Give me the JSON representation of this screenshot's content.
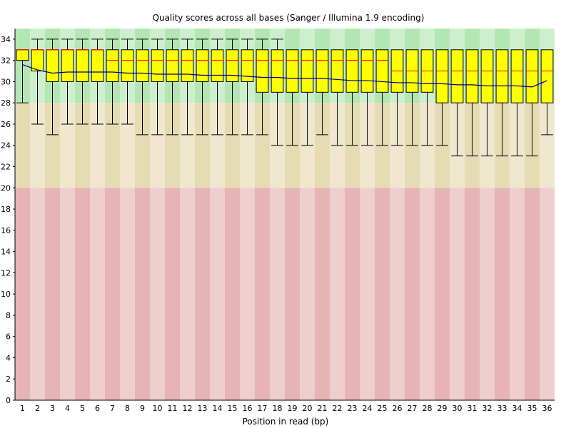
{
  "chart_data": {
    "type": "box",
    "title": "Quality scores across all bases (Sanger / Illumina 1.9 encoding)",
    "xlabel": "Position in read (bp)",
    "ylabel": "",
    "ylim": [
      0,
      35
    ],
    "y_ticks": [
      0,
      2,
      4,
      6,
      8,
      10,
      12,
      14,
      16,
      18,
      20,
      22,
      24,
      26,
      28,
      30,
      32,
      34
    ],
    "categories": [
      "1",
      "2",
      "3",
      "4",
      "5",
      "6",
      "7",
      "8",
      "9",
      "10",
      "11",
      "12",
      "13",
      "14",
      "15",
      "16",
      "17",
      "18",
      "19",
      "20",
      "21",
      "22",
      "23",
      "24",
      "25",
      "26",
      "27",
      "28",
      "29",
      "30",
      "31",
      "32",
      "33",
      "34",
      "35",
      "36"
    ],
    "bands": [
      {
        "from": 28,
        "to": 35,
        "color": "#b4e6b4"
      },
      {
        "from": 20,
        "to": 28,
        "color": "#e6dcb4"
      },
      {
        "from": 0,
        "to": 20,
        "color": "#e6b4b4"
      }
    ],
    "box_color": "#ffff00",
    "median_color": "#ff0000",
    "mean_color": "#000080",
    "series": [
      {
        "name": "box",
        "whisker_low": [
          28,
          26,
          25,
          26,
          26,
          26,
          26,
          26,
          25,
          25,
          25,
          25,
          25,
          25,
          25,
          25,
          25,
          24,
          24,
          24,
          25,
          24,
          24,
          24,
          24,
          24,
          24,
          24,
          24,
          23,
          23,
          23,
          23,
          23,
          23,
          25
        ],
        "q1": [
          32,
          31,
          30,
          30,
          30,
          30,
          30,
          30,
          30,
          30,
          30,
          30,
          30,
          30,
          30,
          30,
          29,
          29,
          29,
          29,
          29,
          29,
          29,
          29,
          29,
          29,
          29,
          29,
          28,
          28,
          28,
          28,
          28,
          28,
          28,
          28
        ],
        "median": [
          33,
          33,
          33,
          33,
          33,
          33,
          32,
          32,
          32,
          32,
          32,
          32,
          32,
          32,
          32,
          32,
          32,
          32,
          32,
          32,
          32,
          32,
          32,
          32,
          32,
          31,
          31,
          31,
          31,
          31,
          31,
          31,
          31,
          31,
          31,
          31
        ],
        "q3": [
          33,
          33,
          33,
          33,
          33,
          33,
          33,
          33,
          33,
          33,
          33,
          33,
          33,
          33,
          33,
          33,
          33,
          33,
          33,
          33,
          33,
          33,
          33,
          33,
          33,
          33,
          33,
          33,
          33,
          33,
          33,
          33,
          33,
          33,
          33,
          33
        ],
        "whisker_high": [
          33,
          34,
          34,
          34,
          34,
          34,
          34,
          34,
          34,
          34,
          34,
          34,
          34,
          34,
          34,
          34,
          34,
          34,
          33,
          33,
          33,
          33,
          33,
          33,
          33,
          33,
          33,
          33,
          33,
          33,
          33,
          33,
          33,
          33,
          33,
          33
        ],
        "mean": [
          31.6,
          31.1,
          30.8,
          30.9,
          30.9,
          30.9,
          30.9,
          30.8,
          30.8,
          30.7,
          30.7,
          30.7,
          30.6,
          30.6,
          30.6,
          30.5,
          30.4,
          30.4,
          30.3,
          30.3,
          30.3,
          30.2,
          30.1,
          30.1,
          30.0,
          29.9,
          29.9,
          29.8,
          29.8,
          29.7,
          29.7,
          29.6,
          29.6,
          29.6,
          29.5,
          30.1
        ]
      }
    ]
  }
}
